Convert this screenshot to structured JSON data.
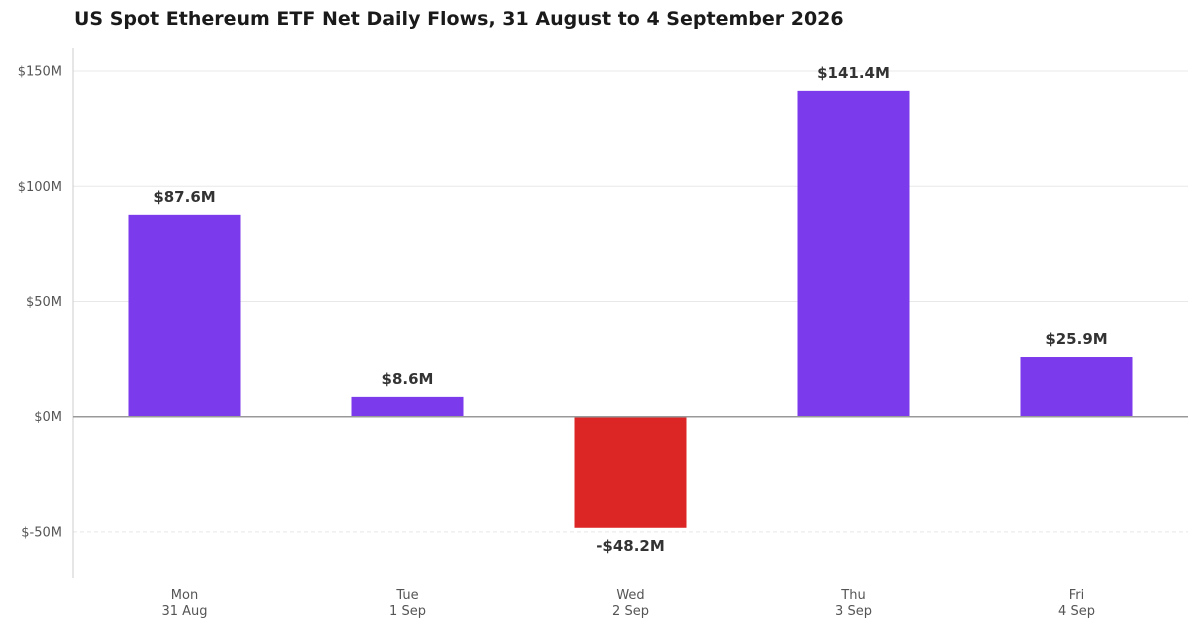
{
  "chart_data": {
    "type": "bar",
    "title": "US Spot Ethereum ETF Net Daily Flows, 31 August to 4 September 2026",
    "xlabel": "",
    "ylabel": "",
    "categories": [
      [
        "Mon",
        "31 Aug"
      ],
      [
        "Tue",
        "1 Sep"
      ],
      [
        "Wed",
        "2 Sep"
      ],
      [
        "Thu",
        "3 Sep"
      ],
      [
        "Fri",
        "4 Sep"
      ]
    ],
    "values": [
      87.6,
      8.6,
      -48.2,
      141.4,
      25.9
    ],
    "data_labels": [
      "$87.6M",
      "$8.6M",
      "-$48.2M",
      "$141.4M",
      "$25.9M"
    ],
    "units": "USD millions",
    "ylim": [
      -70,
      160
    ],
    "yticks": [
      -50,
      0,
      50,
      100,
      150
    ],
    "ytick_labels": [
      "$-50M",
      "$0M",
      "$50M",
      "$100M",
      "$150M"
    ],
    "grid": "horizontal",
    "legend": "none",
    "colors": {
      "positive": "#7c3aed",
      "negative": "#dc2626",
      "zero_line": "#999999",
      "grid": "#e8e8e8",
      "axis": "#cccccc"
    }
  }
}
